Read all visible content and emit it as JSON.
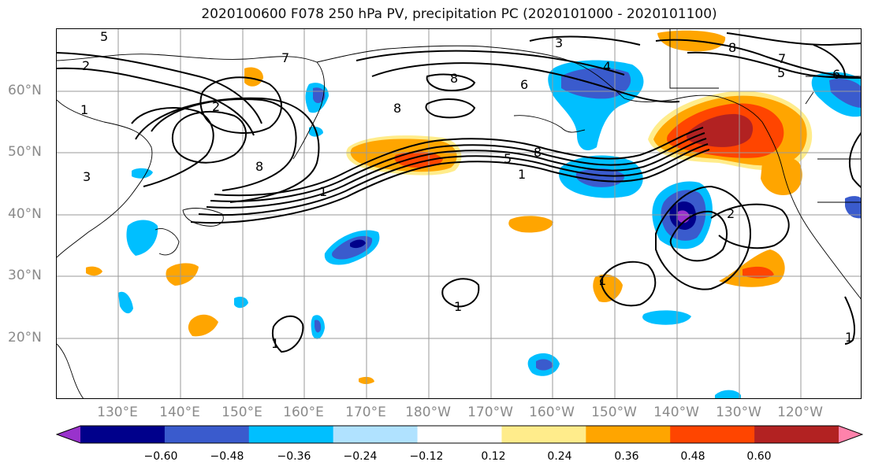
{
  "title": "2020100600 F078 250 hPa PV, precipitation PC (2020101000 - 2020101100)",
  "latitude_labels": [
    "60°N",
    "50°N",
    "40°N",
    "30°N",
    "20°N"
  ],
  "longitude_labels": [
    "130°E",
    "140°E",
    "150°E",
    "160°E",
    "170°E",
    "180°W",
    "170°W",
    "160°W",
    "150°W",
    "140°W",
    "130°W",
    "120°W"
  ],
  "contour_labels": [
    "5",
    "2",
    "1",
    "2",
    "8",
    "1",
    "8",
    "8",
    "8",
    "3",
    "4",
    "6",
    "8",
    "7",
    "5",
    "6",
    "5",
    "1",
    "1",
    "1",
    "1",
    "2",
    "1",
    "3",
    "7"
  ],
  "colorbar": {
    "colors": [
      "#9932CC",
      "#00008B",
      "#3A5BCD",
      "#00BFFF",
      "#B0E2FF",
      "#FFFFFF",
      "#FFEC8B",
      "#FFA500",
      "#FF4500",
      "#B22222",
      "#FF82AB"
    ],
    "tick_labels": [
      "−0.60",
      "−0.48",
      "−0.36",
      "−0.24",
      "−0.12",
      "0.12",
      "0.24",
      "0.36",
      "0.48",
      "0.60"
    ]
  }
}
